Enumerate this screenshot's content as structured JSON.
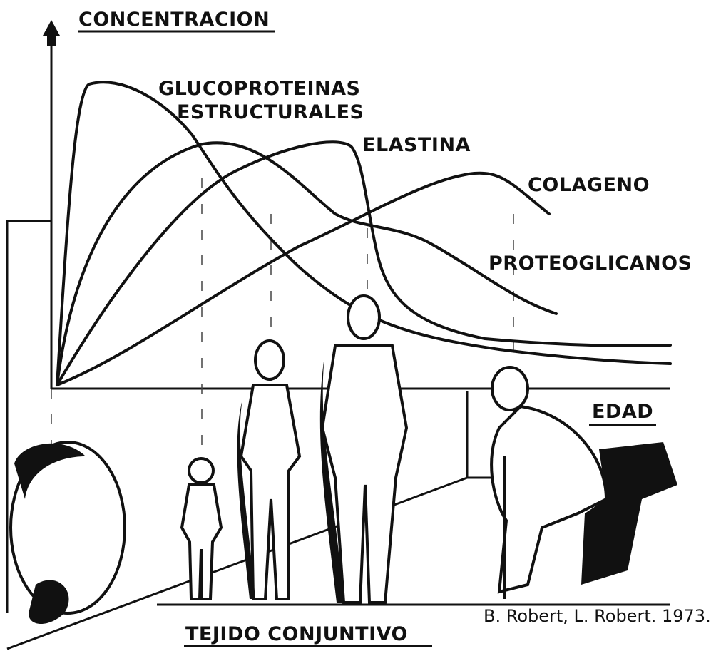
{
  "y_axis_label": "CONCENTRACION",
  "x_axis_label": "EDAD",
  "curve_labels": {
    "glycoproteins": [
      "GLUCOPROTEINAS",
      "ESTRUCTURALES"
    ],
    "elastin": "ELASTINA",
    "collagen": "COLAGENO",
    "proteoglycans": "PROTEOGLICANOS"
  },
  "caption": "TEJIDO CONJUNTIVO",
  "credit": "B. Robert, L. Robert. 1973."
}
